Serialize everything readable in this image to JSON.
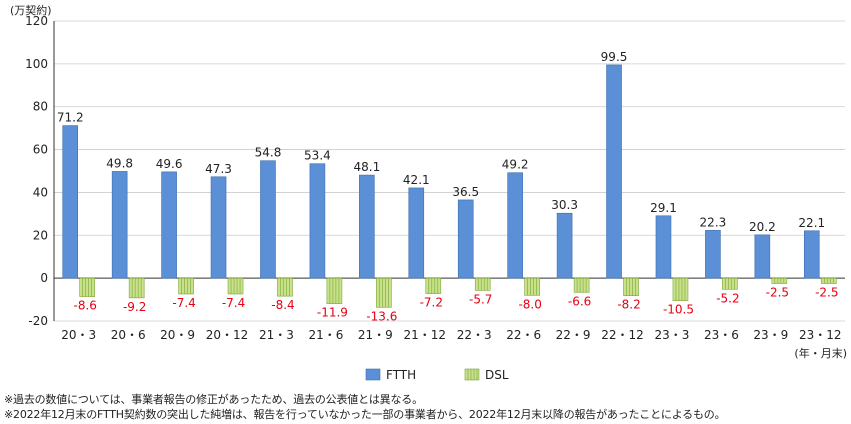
{
  "chart_data": {
    "type": "bar",
    "unit_label": "(万契約)",
    "x_unit_label": "(年・月末)",
    "categories": [
      "20・3",
      "20・6",
      "20・9",
      "20・12",
      "21・3",
      "21・6",
      "21・9",
      "21・12",
      "22・3",
      "22・6",
      "22・9",
      "22・12",
      "23・3",
      "23・6",
      "23・9",
      "23・12"
    ],
    "series": [
      {
        "name": "FTTH",
        "values": [
          71.2,
          49.8,
          49.6,
          47.3,
          54.8,
          53.4,
          48.1,
          42.1,
          36.5,
          49.2,
          30.3,
          99.5,
          29.1,
          22.3,
          20.2,
          22.1
        ],
        "color": "#5b8fd6",
        "label_color": "#222222"
      },
      {
        "name": "DSL",
        "values": [
          -8.6,
          -9.2,
          -7.4,
          -7.4,
          -8.4,
          -11.9,
          -13.6,
          -7.2,
          -5.7,
          -8.0,
          -6.6,
          -8.2,
          -10.5,
          -5.2,
          -2.5,
          -2.5
        ],
        "color": "#c9e28a",
        "label_color": "#e60012"
      }
    ],
    "ylim": [
      -20,
      120
    ],
    "yticks": [
      -20,
      0,
      20,
      40,
      60,
      80,
      100,
      120
    ],
    "grid": "horizontal",
    "legend_position": "bottom-center"
  },
  "notes": [
    "※過去の数値については、事業者報告の修正があったため、過去の公表値とは異なる。",
    "※2022年12月末のFTTH契約数の突出した純増は、報告を行っていなかった一部の事業者から、2022年12月末以降の報告があったことによるもの。"
  ]
}
